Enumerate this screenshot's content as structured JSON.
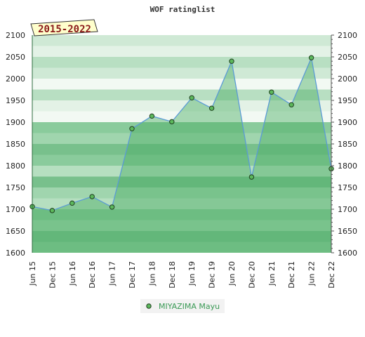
{
  "chart_data": {
    "type": "area",
    "title": "WOF ratinglist",
    "badge": "2015-2022",
    "categories": [
      "Jun 15",
      "Dec 15",
      "Jun 16",
      "Dec 16",
      "Jun 17",
      "Dec 17",
      "Jun 18",
      "Dec 18",
      "Jun 19",
      "Dec 19",
      "Jun 20",
      "Dec 20",
      "Jun 21",
      "Dec 21",
      "Jun 22",
      "Dec 22"
    ],
    "series": [
      {
        "name": "MIYAZIMA Mayu",
        "values": [
          1706,
          1697,
          1714,
          1729,
          1705,
          1885,
          1914,
          1901,
          1956,
          1932,
          2040,
          1774,
          1969,
          1940,
          2048,
          1793
        ]
      }
    ],
    "ylim": [
      1600,
      2100
    ],
    "yticks": [
      1600,
      1650,
      1700,
      1750,
      1800,
      1850,
      1900,
      1950,
      2000,
      2050,
      2100
    ],
    "xlabel": "",
    "ylabel": "",
    "legend_position": "bottom-center",
    "colors": {
      "line": "#5b9bd5",
      "marker": "#5cb85c",
      "area": "#4aad63",
      "badge_fill": "#ffffcc",
      "badge_text": "#8b1a1a",
      "legend_text": "#3a9a55"
    }
  }
}
